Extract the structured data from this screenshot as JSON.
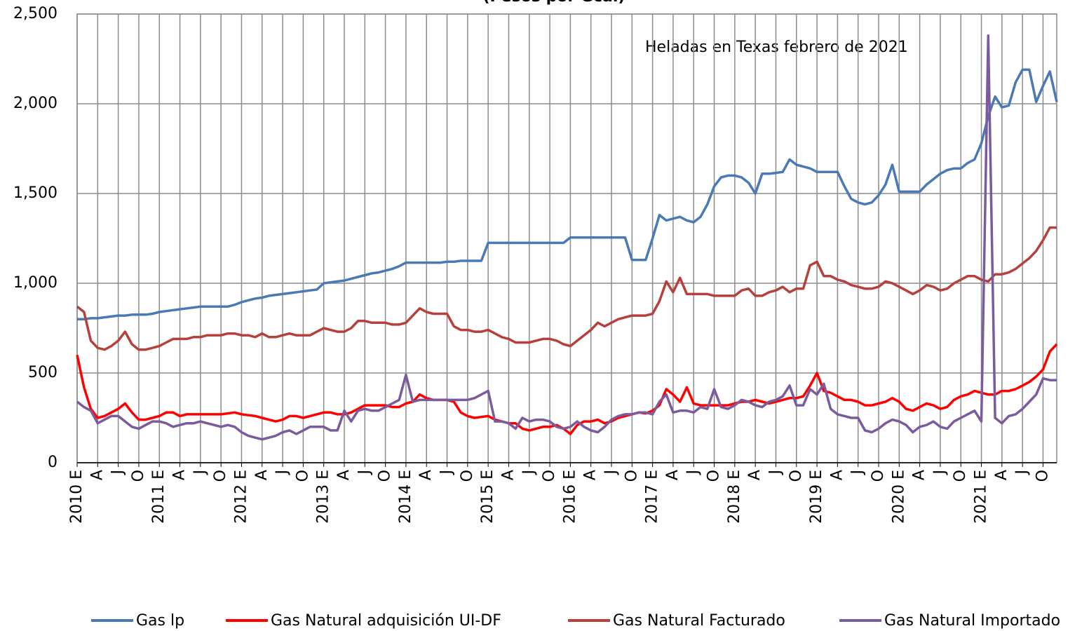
{
  "chart_data": {
    "type": "line",
    "subtitle": "(Pesos por Gcal)",
    "annotation": "Heladas en Texas febrero de 2021",
    "categories": [
      "2010 E",
      null,
      null,
      "A",
      null,
      null,
      "J",
      null,
      null,
      "O",
      null,
      null,
      "2011 E",
      null,
      null,
      "A",
      null,
      null,
      "J",
      null,
      null,
      "O",
      null,
      null,
      "2012 E",
      null,
      null,
      "A",
      null,
      null,
      "J",
      null,
      null,
      "O",
      null,
      null,
      "2013 E",
      null,
      null,
      "A",
      null,
      null,
      "J",
      null,
      null,
      "O",
      null,
      null,
      "2014 E",
      null,
      null,
      "A",
      null,
      null,
      "J",
      null,
      null,
      "O",
      null,
      null,
      "2015 E",
      null,
      null,
      "A",
      null,
      null,
      "J",
      null,
      null,
      "O",
      null,
      null,
      "2016 E",
      null,
      null,
      "A",
      null,
      null,
      "J",
      null,
      null,
      "O",
      null,
      null,
      "2017 E",
      null,
      null,
      "A",
      null,
      null,
      "J",
      null,
      null,
      "O",
      null,
      null,
      "2018 E",
      null,
      null,
      "A",
      null,
      null,
      "J",
      null,
      null,
      "O",
      null,
      null,
      "2019 E",
      null,
      null,
      "A",
      null,
      null,
      "J",
      null,
      null,
      "O",
      null,
      null,
      "2020 E",
      null,
      null,
      "A",
      null,
      null,
      "J",
      null,
      null,
      "O",
      null,
      null,
      "2021 E",
      null,
      null,
      "A",
      null,
      null,
      "J",
      null,
      null,
      "O",
      null,
      null
    ],
    "ylim": [
      0,
      2500
    ],
    "yticks": [
      0,
      500,
      {
        "value": 1000,
        "label": "1,000"
      },
      {
        "value": 1500,
        "label": "1,500"
      },
      {
        "value": 2000,
        "label": "2,000"
      },
      {
        "value": 2500,
        "label": "2,500"
      }
    ],
    "grid": true,
    "legend": "bottom",
    "series": [
      {
        "name": "Gas lp",
        "color": "#4a7ab5",
        "values": [
          800,
          800,
          805,
          805,
          810,
          815,
          820,
          820,
          825,
          825,
          825,
          830,
          840,
          845,
          850,
          855,
          860,
          865,
          870,
          870,
          870,
          870,
          870,
          880,
          895,
          905,
          915,
          920,
          930,
          935,
          940,
          945,
          950,
          955,
          960,
          965,
          1000,
          1005,
          1010,
          1015,
          1025,
          1035,
          1045,
          1055,
          1060,
          1070,
          1080,
          1095,
          1115,
          1115,
          1115,
          1115,
          1115,
          1115,
          1120,
          1120,
          1125,
          1125,
          1125,
          1125,
          1225,
          1225,
          1225,
          1225,
          1225,
          1225,
          1225,
          1225,
          1225,
          1225,
          1225,
          1225,
          1255,
          1255,
          1255,
          1255,
          1255,
          1255,
          1255,
          1255,
          1255,
          1130,
          1130,
          1130,
          1250,
          1380,
          1350,
          1360,
          1370,
          1350,
          1340,
          1370,
          1440,
          1540,
          1590,
          1600,
          1600,
          1590,
          1560,
          1500,
          1610,
          1610,
          1615,
          1620,
          1690,
          1660,
          1650,
          1640,
          1620,
          1620,
          1620,
          1620,
          1540,
          1470,
          1450,
          1440,
          1450,
          1490,
          1550,
          1660,
          1510,
          1510,
          1510,
          1510,
          1550,
          1580,
          1610,
          1630,
          1640,
          1640,
          1670,
          1690,
          1780,
          1930,
          2040,
          1980,
          1990,
          2120,
          2190,
          2190,
          2010,
          2100,
          2180,
          2010
        ]
      },
      {
        "name": "Gas Natural adquisición UI-DF",
        "color": "#ff0000",
        "values": [
          600,
          420,
          300,
          250,
          260,
          280,
          300,
          330,
          280,
          240,
          240,
          250,
          260,
          280,
          280,
          260,
          270,
          270,
          270,
          270,
          270,
          270,
          275,
          280,
          270,
          265,
          260,
          250,
          240,
          230,
          240,
          260,
          260,
          250,
          260,
          270,
          280,
          280,
          270,
          270,
          280,
          300,
          320,
          320,
          320,
          320,
          310,
          310,
          330,
          340,
          380,
          360,
          350,
          350,
          350,
          340,
          280,
          260,
          250,
          255,
          260,
          240,
          230,
          220,
          220,
          190,
          180,
          190,
          200,
          200,
          210,
          190,
          160,
          210,
          230,
          230,
          240,
          220,
          230,
          250,
          260,
          270,
          280,
          275,
          290,
          320,
          410,
          380,
          340,
          420,
          330,
          320,
          320,
          320,
          320,
          320,
          330,
          340,
          340,
          350,
          340,
          330,
          340,
          350,
          360,
          360,
          370,
          430,
          500,
          400,
          390,
          370,
          350,
          350,
          340,
          320,
          320,
          330,
          340,
          360,
          340,
          300,
          290,
          310,
          330,
          320,
          300,
          310,
          350,
          370,
          380,
          400,
          390,
          380,
          380,
          400,
          400,
          410,
          430,
          450,
          480,
          520,
          620,
          660
        ]
      },
      {
        "name": "Gas Natural Facturado",
        "color": "#b5403c",
        "values": [
          870,
          840,
          680,
          640,
          630,
          650,
          680,
          730,
          660,
          630,
          630,
          640,
          650,
          670,
          690,
          690,
          690,
          700,
          700,
          710,
          710,
          710,
          720,
          720,
          710,
          710,
          700,
          720,
          700,
          700,
          710,
          720,
          710,
          710,
          710,
          730,
          750,
          740,
          730,
          730,
          750,
          790,
          790,
          780,
          780,
          780,
          770,
          770,
          780,
          820,
          860,
          840,
          830,
          830,
          830,
          760,
          740,
          740,
          730,
          730,
          740,
          720,
          700,
          690,
          670,
          670,
          670,
          680,
          690,
          690,
          680,
          660,
          650,
          680,
          710,
          740,
          780,
          760,
          780,
          800,
          810,
          820,
          820,
          820,
          830,
          900,
          1010,
          950,
          1030,
          940,
          940,
          940,
          940,
          930,
          930,
          930,
          930,
          960,
          970,
          930,
          930,
          950,
          960,
          980,
          950,
          970,
          970,
          1100,
          1120,
          1040,
          1040,
          1020,
          1010,
          990,
          980,
          970,
          970,
          980,
          1010,
          1000,
          980,
          960,
          940,
          960,
          990,
          980,
          960,
          970,
          1000,
          1020,
          1040,
          1040,
          1020,
          1010,
          1050,
          1050,
          1060,
          1080,
          1110,
          1140,
          1180,
          1240,
          1310,
          1310
        ]
      },
      {
        "name": "Gas Natural Importado",
        "color": "#7b5a9e",
        "values": [
          340,
          310,
          290,
          220,
          240,
          260,
          260,
          230,
          200,
          190,
          210,
          230,
          230,
          220,
          200,
          210,
          220,
          220,
          230,
          220,
          210,
          200,
          210,
          200,
          170,
          150,
          140,
          130,
          140,
          150,
          170,
          180,
          160,
          180,
          200,
          200,
          200,
          180,
          180,
          290,
          230,
          290,
          300,
          290,
          290,
          310,
          330,
          350,
          490,
          340,
          350,
          350,
          350,
          350,
          350,
          350,
          350,
          350,
          360,
          380,
          400,
          230,
          230,
          220,
          190,
          250,
          230,
          240,
          240,
          230,
          200,
          190,
          200,
          230,
          200,
          180,
          170,
          200,
          240,
          260,
          270,
          270,
          280,
          280,
          270,
          340,
          380,
          280,
          290,
          290,
          280,
          310,
          300,
          410,
          310,
          300,
          320,
          350,
          340,
          320,
          310,
          340,
          350,
          370,
          430,
          320,
          320,
          410,
          380,
          440,
          300,
          270,
          260,
          250,
          250,
          180,
          170,
          190,
          220,
          240,
          230,
          210,
          170,
          200,
          210,
          230,
          200,
          190,
          230,
          250,
          270,
          290,
          230,
          2380,
          250,
          220,
          260,
          270,
          300,
          340,
          380,
          470,
          460,
          460
        ]
      }
    ]
  }
}
